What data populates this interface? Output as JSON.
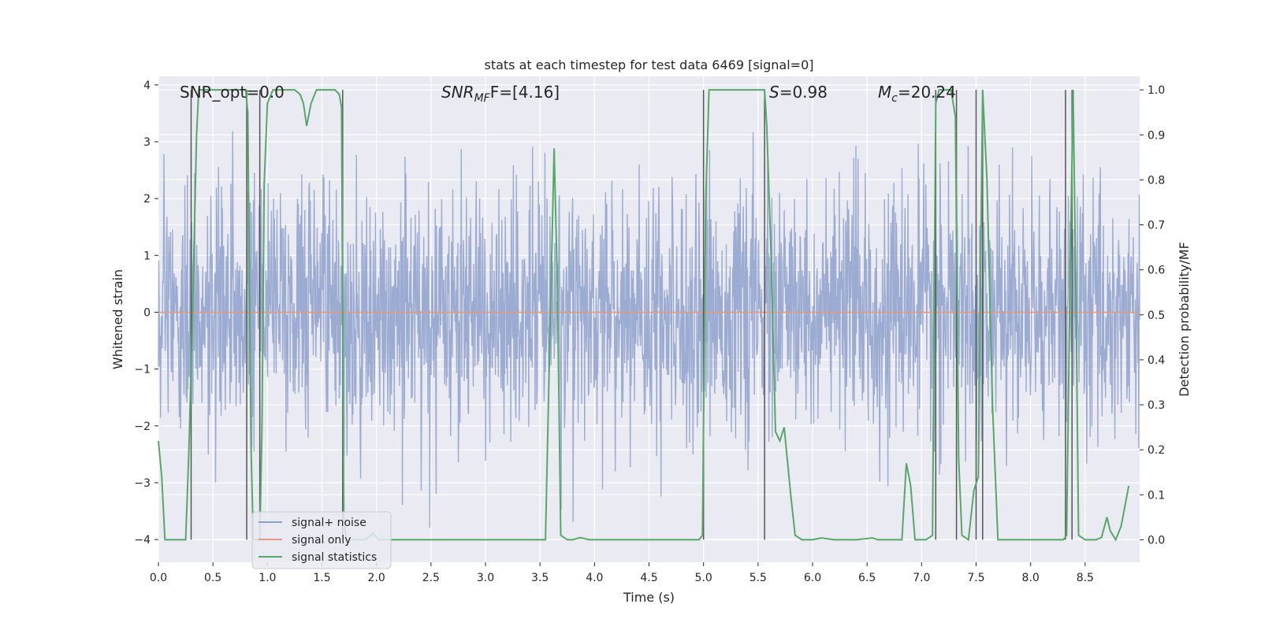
{
  "chart_data": {
    "type": "line",
    "title": "stats at each timestep for test data 6469 [signal=0]",
    "xlabel": "Time (s)",
    "ylabel": "Whitened strain",
    "y2label": "Detection probability/MF",
    "xlim": [
      0,
      9.0
    ],
    "ylim": [
      -4.4,
      4.15
    ],
    "y2lim": [
      -0.05,
      1.03
    ],
    "x_ticks": [
      "0.0",
      "0.5",
      "1.0",
      "1.5",
      "2.0",
      "2.5",
      "3.0",
      "3.5",
      "4.0",
      "4.5",
      "5.0",
      "5.5",
      "6.0",
      "6.5",
      "7.0",
      "7.5",
      "8.0",
      "8.5"
    ],
    "y_ticks": [
      "4",
      "3",
      "2",
      "1",
      "0",
      "−1",
      "−2",
      "−3",
      "−4"
    ],
    "y2_ticks": [
      "1.0",
      "0.9",
      "0.8",
      "0.7",
      "0.6",
      "0.5",
      "0.4",
      "0.3",
      "0.2",
      "0.1",
      "0.0"
    ],
    "grid": true,
    "legend_position": "lower-left",
    "annotations": {
      "snr_opt": "SNR_opt=0.0",
      "snr_mf_sym": "SNR",
      "snr_mf_sub": "MF",
      "snr_mf_val": "F=[4.16]",
      "s_sym": "S",
      "s_val": "=0.98",
      "mc_sym": "M",
      "mc_sub": "c",
      "mc_val": "=20.24"
    },
    "series": [
      {
        "name": "signal+ noise",
        "color": "#8da0cb",
        "description_values": "noise-like whitened strain, mostly within [-2.2, 2.3] with spikes to about [-4.0, 3.7]"
      },
      {
        "name": "signal only",
        "color": "#e5997d",
        "values_constant": 0.0
      },
      {
        "name": "signal statistics",
        "color": "#55a868",
        "axis": "right",
        "points": [
          [
            0.0,
            0.22
          ],
          [
            0.03,
            0.14
          ],
          [
            0.06,
            0.0
          ],
          [
            0.1,
            0.0
          ],
          [
            0.15,
            0.0
          ],
          [
            0.2,
            0.0
          ],
          [
            0.25,
            0.0
          ],
          [
            0.28,
            0.2
          ],
          [
            0.31,
            0.47
          ],
          [
            0.35,
            0.9
          ],
          [
            0.37,
            1.0
          ],
          [
            0.45,
            1.0
          ],
          [
            0.55,
            1.0
          ],
          [
            0.65,
            1.0
          ],
          [
            0.75,
            1.0
          ],
          [
            0.8,
            1.0
          ],
          [
            0.82,
            0.95
          ],
          [
            0.85,
            0.2
          ],
          [
            0.87,
            0.0
          ],
          [
            0.89,
            0.0
          ],
          [
            0.93,
            0.0
          ],
          [
            0.95,
            0.25
          ],
          [
            0.97,
            0.79
          ],
          [
            1.0,
            0.97
          ],
          [
            1.05,
            1.0
          ],
          [
            1.15,
            1.0
          ],
          [
            1.25,
            1.0
          ],
          [
            1.3,
            0.99
          ],
          [
            1.33,
            0.97
          ],
          [
            1.36,
            0.92
          ],
          [
            1.4,
            0.97
          ],
          [
            1.45,
            1.0
          ],
          [
            1.55,
            1.0
          ],
          [
            1.62,
            1.0
          ],
          [
            1.66,
            0.99
          ],
          [
            1.68,
            0.96
          ],
          [
            1.7,
            0.05
          ],
          [
            1.72,
            0.0
          ],
          [
            1.8,
            0.0
          ],
          [
            1.9,
            0.0
          ],
          [
            1.97,
            0.015
          ],
          [
            2.02,
            0.0
          ],
          [
            2.1,
            0.0
          ],
          [
            2.5,
            0.0
          ],
          [
            3.0,
            0.0
          ],
          [
            3.4,
            0.0
          ],
          [
            3.55,
            0.0
          ],
          [
            3.58,
            0.33
          ],
          [
            3.63,
            0.87
          ],
          [
            3.66,
            0.56
          ],
          [
            3.69,
            0.01
          ],
          [
            3.75,
            0.0
          ],
          [
            3.8,
            0.0
          ],
          [
            3.87,
            0.005
          ],
          [
            3.95,
            0.0
          ],
          [
            4.2,
            0.0
          ],
          [
            4.6,
            0.0
          ],
          [
            4.96,
            0.0
          ],
          [
            4.99,
            0.01
          ],
          [
            5.02,
            0.75
          ],
          [
            5.05,
            1.0
          ],
          [
            5.2,
            1.0
          ],
          [
            5.4,
            1.0
          ],
          [
            5.56,
            1.0
          ],
          [
            5.58,
            0.92
          ],
          [
            5.62,
            0.63
          ],
          [
            5.66,
            0.24
          ],
          [
            5.7,
            0.22
          ],
          [
            5.74,
            0.25
          ],
          [
            5.8,
            0.1
          ],
          [
            5.84,
            0.01
          ],
          [
            5.9,
            0.0
          ],
          [
            6.0,
            0.0
          ],
          [
            6.08,
            0.004
          ],
          [
            6.2,
            0.0
          ],
          [
            6.4,
            0.0
          ],
          [
            6.55,
            0.004
          ],
          [
            6.6,
            0.0
          ],
          [
            6.76,
            0.0
          ],
          [
            6.82,
            0.0
          ],
          [
            6.86,
            0.17
          ],
          [
            6.9,
            0.12
          ],
          [
            6.94,
            0.0
          ],
          [
            7.04,
            0.0
          ],
          [
            7.1,
            0.01
          ],
          [
            7.13,
            0.97
          ],
          [
            7.16,
            1.0
          ],
          [
            7.22,
            1.0
          ],
          [
            7.27,
            1.0
          ],
          [
            7.31,
            0.94
          ],
          [
            7.34,
            0.18
          ],
          [
            7.37,
            0.01
          ],
          [
            7.43,
            0.0
          ],
          [
            7.48,
            0.11
          ],
          [
            7.52,
            0.14
          ],
          [
            7.56,
            1.0
          ],
          [
            7.6,
            0.8
          ],
          [
            7.65,
            0.3
          ],
          [
            7.7,
            0.0
          ],
          [
            7.8,
            0.0
          ],
          [
            8.0,
            0.0
          ],
          [
            8.2,
            0.0
          ],
          [
            8.3,
            0.0
          ],
          [
            8.33,
            0.01
          ],
          [
            8.36,
            0.55
          ],
          [
            8.39,
            1.0
          ],
          [
            8.42,
            0.45
          ],
          [
            8.44,
            0.01
          ],
          [
            8.5,
            0.0
          ],
          [
            8.6,
            0.0
          ],
          [
            8.65,
            0.005
          ],
          [
            8.7,
            0.05
          ],
          [
            8.73,
            0.02
          ],
          [
            8.78,
            0.0
          ],
          [
            8.83,
            0.03
          ],
          [
            8.9,
            0.12
          ]
        ]
      }
    ],
    "vertical_markers": [
      0.3,
      0.81,
      0.93,
      1.69,
      5.0,
      5.56,
      7.13,
      7.32,
      7.5,
      7.56,
      8.32,
      8.38
    ]
  }
}
